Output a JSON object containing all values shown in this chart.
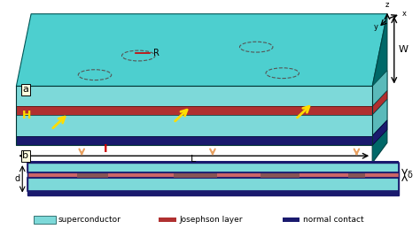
{
  "bg_color": "#ffffff",
  "teal_dark": "#006666",
  "teal_main": "#009999",
  "teal_light": "#00cccc",
  "teal_fill": "#40b8b8",
  "teal_top": "#4dcfcf",
  "sc_color": "#7dd9d9",
  "josephson_color": "#b03030",
  "josephson_light": "#cc6666",
  "normal_contact_color": "#1a1a6e",
  "yellow_arrow": "#ffdd00",
  "orange_arrow": "#e8a060",
  "label_a": "a",
  "label_b": "b",
  "label_R": "R",
  "label_H": "H",
  "label_L": "L",
  "label_W": "W",
  "label_I": "I",
  "label_d": "d",
  "label_delta": "δ",
  "legend_sc": "superconductor",
  "legend_josephson": "Josephson layer",
  "legend_normal": "normal contact",
  "axis_labels": [
    "z",
    "x",
    "y"
  ]
}
